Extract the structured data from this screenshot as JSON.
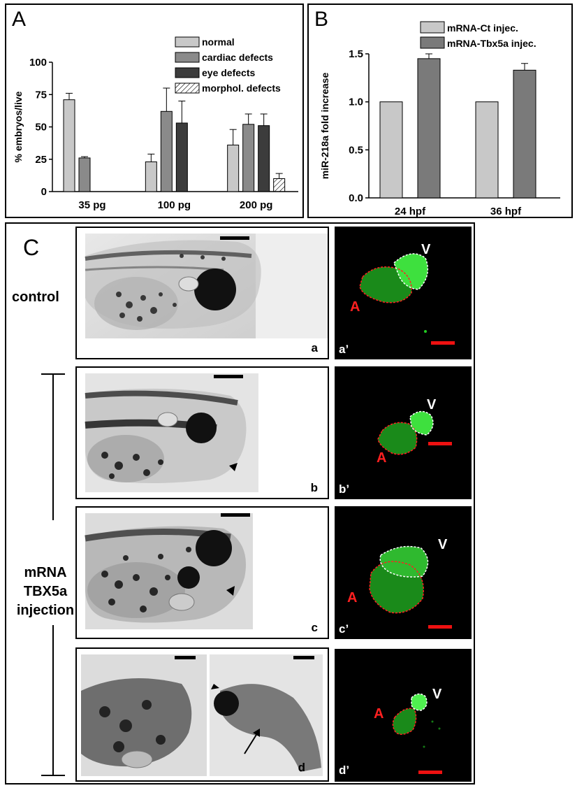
{
  "panels": {
    "A": {
      "letter": "A"
    },
    "B": {
      "letter": "B"
    },
    "C": {
      "letter": "C"
    }
  },
  "chart_data": [
    {
      "type": "bar",
      "panel": "A",
      "categories": [
        "35 pg",
        "100 pg",
        "200 pg"
      ],
      "ylabel": "% embryos/live",
      "ylim": [
        0,
        100
      ],
      "yticks": [
        "0",
        "25",
        "50",
        "75",
        "100"
      ],
      "legend_position": "top-right",
      "series": [
        {
          "name": "normal",
          "values": [
            71,
            23,
            36
          ],
          "errors": [
            5,
            6,
            12
          ],
          "color": "#c8c8c8",
          "pattern": "solid"
        },
        {
          "name": "cardiac defects",
          "values": [
            26,
            62,
            52
          ],
          "errors": [
            1,
            18,
            8
          ],
          "color": "#8a8a8a",
          "pattern": "solid"
        },
        {
          "name": "eye defects",
          "values": [
            null,
            53,
            51
          ],
          "errors": [
            null,
            17,
            9
          ],
          "color": "#3c3c3c",
          "pattern": "solid"
        },
        {
          "name": "morphol. defects",
          "values": [
            null,
            null,
            10
          ],
          "errors": [
            null,
            null,
            4
          ],
          "color": "#ffffff",
          "pattern": "hatch"
        }
      ]
    },
    {
      "type": "bar",
      "panel": "B",
      "categories": [
        "24 hpf",
        "36 hpf"
      ],
      "ylabel": "miR-218a fold increase",
      "ylim": [
        0,
        1.5
      ],
      "yticks": [
        "0.0",
        "0.5",
        "1.0",
        "1.5"
      ],
      "legend_position": "top",
      "series": [
        {
          "name": "mRNA-Ct injec.",
          "values": [
            1.0,
            1.0
          ],
          "errors": [
            0,
            0
          ],
          "color": "#c8c8c8",
          "pattern": "solid"
        },
        {
          "name": "mRNA-Tbx5a injec.",
          "values": [
            1.45,
            1.33
          ],
          "errors": [
            0.05,
            0.07
          ],
          "color": "#7a7a7a",
          "pattern": "solid"
        }
      ]
    }
  ],
  "panelC": {
    "label_control": "control",
    "label_injection_lines": [
      "mRNA",
      "TBX5a",
      "injection"
    ],
    "rows": [
      {
        "photo_label": "a",
        "fluo_label": "a’",
        "ventricle": "V",
        "atrium": "A"
      },
      {
        "photo_label": "b",
        "fluo_label": "b’",
        "ventricle": "V",
        "atrium": "A"
      },
      {
        "photo_label": "c",
        "fluo_label": "c’",
        "ventricle": "V",
        "atrium": "A"
      },
      {
        "photo_label": "d",
        "fluo_label": "d’",
        "ventricle": "V",
        "atrium": "A"
      }
    ]
  },
  "colors": {
    "atrium_outline": "#ff2020",
    "ventricle_outline": "#ffffff",
    "fluo_green": "#22cc22",
    "scale_bar_red": "#ee1111"
  }
}
